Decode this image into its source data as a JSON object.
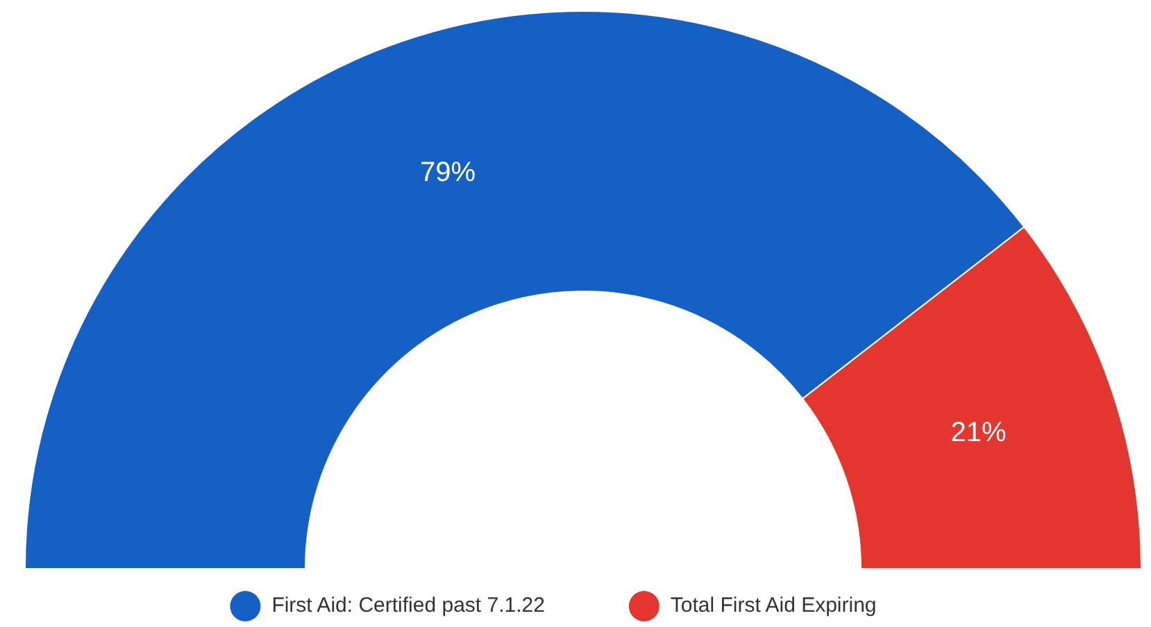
{
  "chart_data": {
    "type": "donut",
    "categories": [
      "First Aid: Certified past 7.1.22",
      "Total First Aid Expiring"
    ],
    "values": [
      79,
      21
    ],
    "colors": [
      "#1560c4",
      "#e5352f"
    ],
    "value_labels": [
      "79%",
      "21%"
    ],
    "legend": "bottom"
  }
}
